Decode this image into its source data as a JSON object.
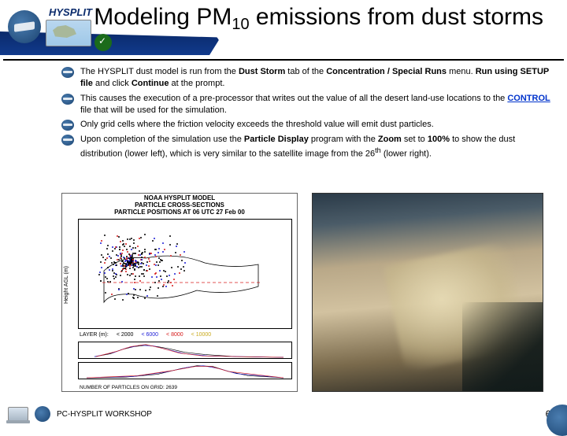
{
  "header": {
    "product_label": "HYSPLIT",
    "title_html": "Modeling PM<sub>10</sub> emissions from dust storms"
  },
  "bullets": [
    {
      "segments": [
        {
          "t": "The HYSPLIT dust model is run from the "
        },
        {
          "t": "Dust Storm",
          "b": true
        },
        {
          "t": " tab of the "
        },
        {
          "t": "Concentration / Special Runs",
          "b": true
        },
        {
          "t": " menu. "
        },
        {
          "t": "Run using SETUP file",
          "b": true
        },
        {
          "t": " and click "
        },
        {
          "t": "Continue",
          "b": true
        },
        {
          "t": " at the prompt."
        }
      ]
    },
    {
      "segments": [
        {
          "t": "This causes the execution of a pre-processor that writes out the value of all the desert land-use locations to the "
        },
        {
          "t": "CONTROL",
          "b": true,
          "link": true
        },
        {
          "t": " file that will be used for the simulation."
        }
      ]
    },
    {
      "segments": [
        {
          "t": "Only grid cells where the friction velocity exceeds the threshold value will emit dust particles."
        }
      ]
    },
    {
      "segments": [
        {
          "t": "Upon completion of the simulation use the "
        },
        {
          "t": "Particle Display",
          "b": true
        },
        {
          "t": " program with the "
        },
        {
          "t": "Zoom",
          "b": true
        },
        {
          "t": " set to "
        },
        {
          "t": "100%",
          "b": true
        },
        {
          "t": " to show the dust distribution (lower left), which is very similar to the satellite image from the 26"
        },
        {
          "t": "th",
          "sup": true
        },
        {
          "t": " (lower right)."
        }
      ]
    }
  ],
  "figure_left": {
    "title_line1": "NOAA HYSPLIT MODEL",
    "title_line2": "PARTICLE CROSS-SECTIONS",
    "title_line3": "PARTICLE POSITIONS AT 06 UTC 27 Feb 00",
    "yaxis": "Height AGL (m)",
    "legend_label": "LAYER (m):",
    "legend_items": [
      "< 2000",
      "< 6000",
      "< 8000",
      "< 10000"
    ],
    "bottom_caption": "NUMBER OF PARTICLES ON GRID:   2639",
    "particle_colors": {
      "low": "#000000",
      "mid": "#1b1bd6",
      "high": "#d61b1b",
      "vhigh": "#c9a91b"
    },
    "dashed_line_color": "#d61b1b"
  },
  "footer": {
    "workshop": "PC-HYSPLIT WORKSHOP",
    "page": "6-6"
  }
}
